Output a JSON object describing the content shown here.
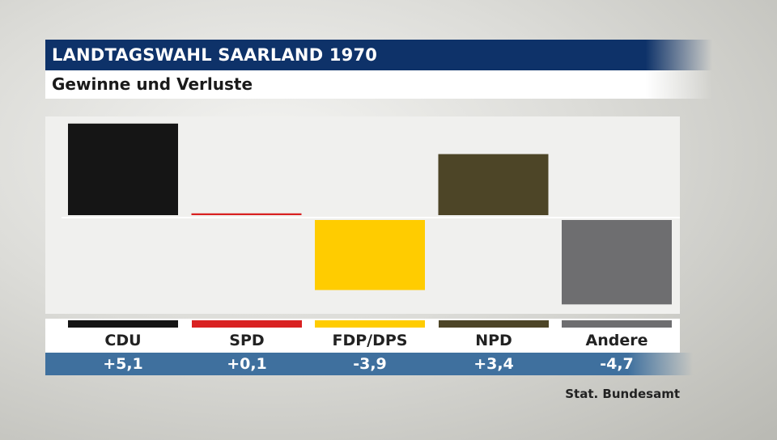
{
  "header": {
    "title": "LANDTAGSWAHL SAARLAND 1970",
    "subtitle": "Gewinne und Verluste"
  },
  "source": "Stat. Bundesamt",
  "chart_data": {
    "type": "bar",
    "title": "LANDTAGSWAHL SAARLAND 1970",
    "subtitle": "Gewinne und Verluste",
    "categories": [
      "CDU",
      "SPD",
      "FDP/DPS",
      "NPD",
      "Andere"
    ],
    "values": [
      5.1,
      0.1,
      -3.9,
      3.4,
      -4.7
    ],
    "value_labels": [
      "+5,1",
      "+0,1",
      "-3,9",
      "+3,4",
      "-4,7"
    ],
    "colors": [
      "#151515",
      "#d92121",
      "#ffcc00",
      "#4d4527",
      "#6e6e70"
    ],
    "ylim": [
      -5.5,
      5.5
    ],
    "grid": false,
    "legend": "none"
  }
}
